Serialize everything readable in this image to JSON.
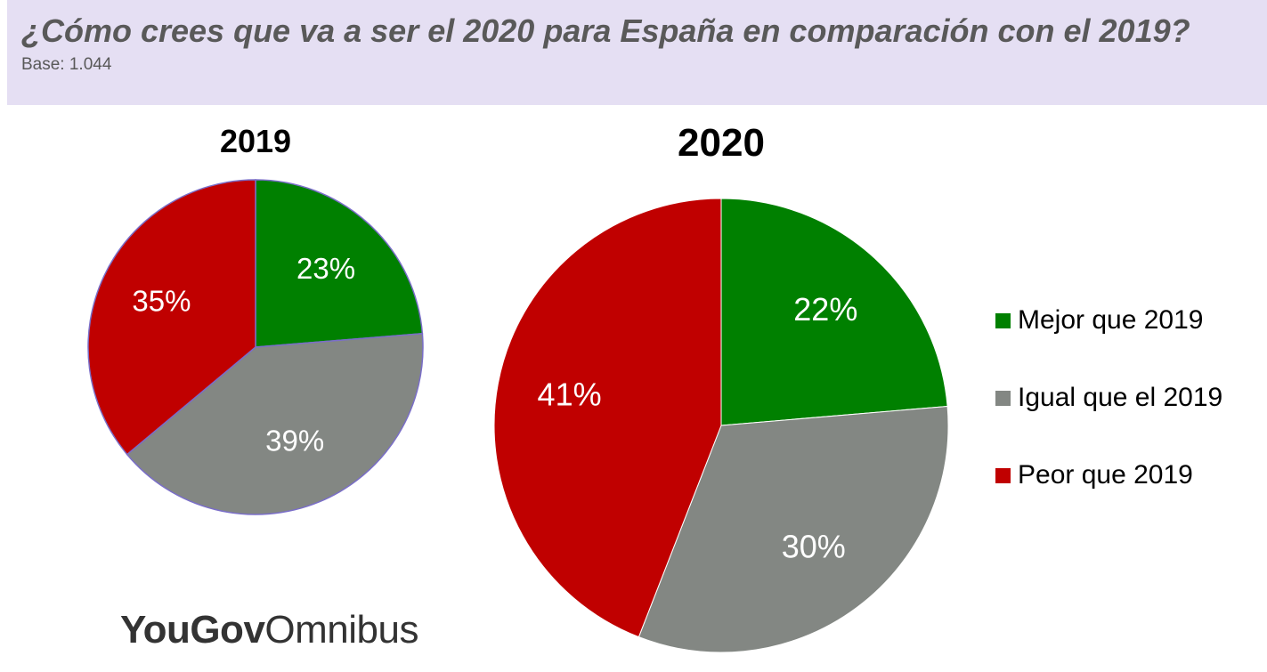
{
  "header": {
    "title": "¿Cómo crees que va a ser el 2020 para España en comparación con el 2019?",
    "subtitle": "Base: 1.044"
  },
  "logo": {
    "bold": "YouGov",
    "light": "Omnibus"
  },
  "colors": {
    "mejor": "#008000",
    "igual": "#838783",
    "peor": "#c00000",
    "header_bg": "#e5dff3"
  },
  "chart_data": [
    {
      "type": "pie",
      "title": "2019",
      "categories": [
        "Mejor que 2019",
        "Igual que el 2019",
        "Peor que 2019"
      ],
      "values": [
        23,
        39,
        35
      ],
      "labels": [
        "23%",
        "39%",
        "35%"
      ]
    },
    {
      "type": "pie",
      "title": "2020",
      "categories": [
        "Mejor que 2019",
        "Igual que el 2019",
        "Peor que 2019"
      ],
      "values": [
        22,
        30,
        41
      ],
      "labels": [
        "22%",
        "30%",
        "41%"
      ]
    }
  ],
  "legend": {
    "placement": "right",
    "items": [
      {
        "label": "Mejor que 2019",
        "color": "#008000"
      },
      {
        "label": "Igual que el 2019",
        "color": "#838783"
      },
      {
        "label": "Peor que 2019",
        "color": "#c00000"
      }
    ]
  }
}
